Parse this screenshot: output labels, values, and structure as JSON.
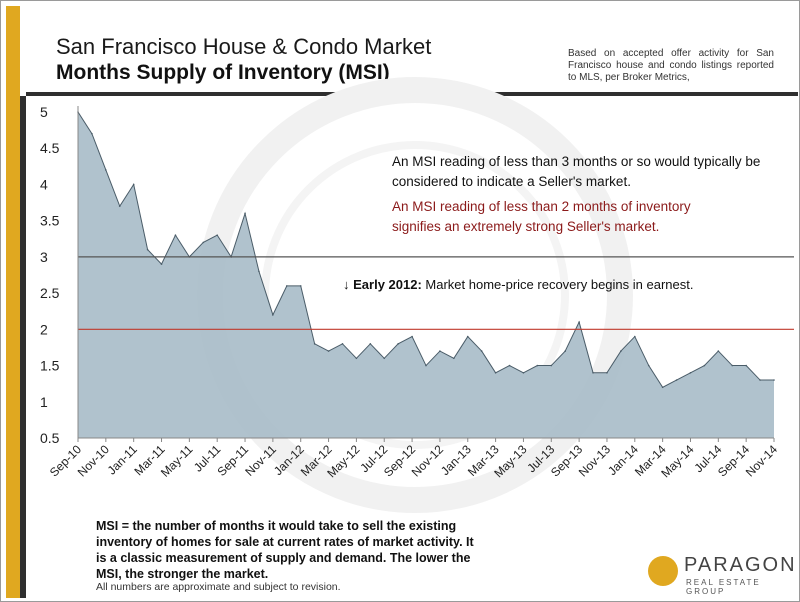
{
  "header": {
    "title_line1": "San Francisco House & Condo Market",
    "title_line2": "Months Supply of Inventory (MSI)",
    "source_note": "Based on accepted offer activity for San Francisco house and condo listings reported to MLS, per Broker Metrics,"
  },
  "annotations": {
    "seller_market": "An MSI reading of less than 3 months or so would typically be considered to indicate a Seller's market.",
    "strong_seller_market": "An MSI reading of less than 2 months of inventory signifies an extremely strong Seller's market.",
    "recovery_arrow": "↓",
    "recovery_label": "Early 2012:",
    "recovery_text": " Market home-price recovery begins in earnest."
  },
  "footer": {
    "definition": "MSI = the number of months it would take to sell the existing inventory of homes for sale at current rates of market activity.  It is a classic measurement of supply and demand. The lower the MSI, the stronger the market.",
    "disclaimer": "All numbers are approximate and subject to revision.",
    "logo_name": "PARAGON",
    "logo_sub": "REAL ESTATE GROUP"
  },
  "colors": {
    "area_fill": "#a9bdc9",
    "area_stroke": "#4a5c68",
    "accent_gold": "#e0a820",
    "line_3": "#555555",
    "line_2": "#c0392b"
  },
  "chart_data": {
    "type": "area",
    "title": "Months Supply of Inventory (MSI)",
    "ylim": [
      0.5,
      5
    ],
    "yticks": [
      "0.5",
      "1",
      "1.5",
      "2",
      "2.5",
      "3",
      "3.5",
      "4",
      "4.5",
      "5"
    ],
    "x_tick_labels": [
      "Sep-10",
      "Nov-10",
      "Jan-11",
      "Mar-11",
      "May-11",
      "Jul-11",
      "Sep-11",
      "Nov-11",
      "Jan-12",
      "Mar-12",
      "May-12",
      "Jul-12",
      "Sep-12",
      "Nov-12",
      "Jan-13",
      "Mar-13",
      "May-13",
      "Jul-13",
      "Sep-13",
      "Nov-13",
      "Jan-14",
      "Mar-14",
      "May-14",
      "Jul-14",
      "Sep-14",
      "Nov-14"
    ],
    "x": [
      "Sep-10",
      "Oct-10",
      "Nov-10",
      "Dec-10",
      "Jan-11",
      "Feb-11",
      "Mar-11",
      "Apr-11",
      "May-11",
      "Jun-11",
      "Jul-11",
      "Aug-11",
      "Sep-11",
      "Oct-11",
      "Nov-11",
      "Dec-11",
      "Jan-12",
      "Feb-12",
      "Mar-12",
      "Apr-12",
      "May-12",
      "Jun-12",
      "Jul-12",
      "Aug-12",
      "Sep-12",
      "Oct-12",
      "Nov-12",
      "Dec-12",
      "Jan-13",
      "Feb-13",
      "Mar-13",
      "Apr-13",
      "May-13",
      "Jun-13",
      "Jul-13",
      "Aug-13",
      "Sep-13",
      "Oct-13",
      "Nov-13",
      "Dec-13",
      "Jan-14",
      "Feb-14",
      "Mar-14",
      "Apr-14",
      "May-14",
      "Jun-14",
      "Jul-14",
      "Aug-14",
      "Sep-14",
      "Oct-14",
      "Nov-14"
    ],
    "values": [
      5.0,
      4.7,
      4.2,
      3.7,
      4.0,
      3.1,
      2.9,
      3.3,
      3.0,
      3.2,
      3.3,
      3.0,
      3.6,
      2.8,
      2.2,
      2.6,
      2.6,
      1.8,
      1.7,
      1.8,
      1.6,
      1.8,
      1.6,
      1.8,
      1.9,
      1.5,
      1.7,
      1.6,
      1.9,
      1.7,
      1.4,
      1.5,
      1.4,
      1.5,
      1.5,
      1.7,
      2.1,
      1.4,
      1.4,
      1.7,
      1.9,
      1.5,
      1.2,
      1.3,
      1.4,
      1.5,
      1.7,
      1.5,
      1.5,
      1.3,
      1.3
    ],
    "reference_lines": [
      3,
      2
    ],
    "grid": false,
    "legend": "none"
  }
}
